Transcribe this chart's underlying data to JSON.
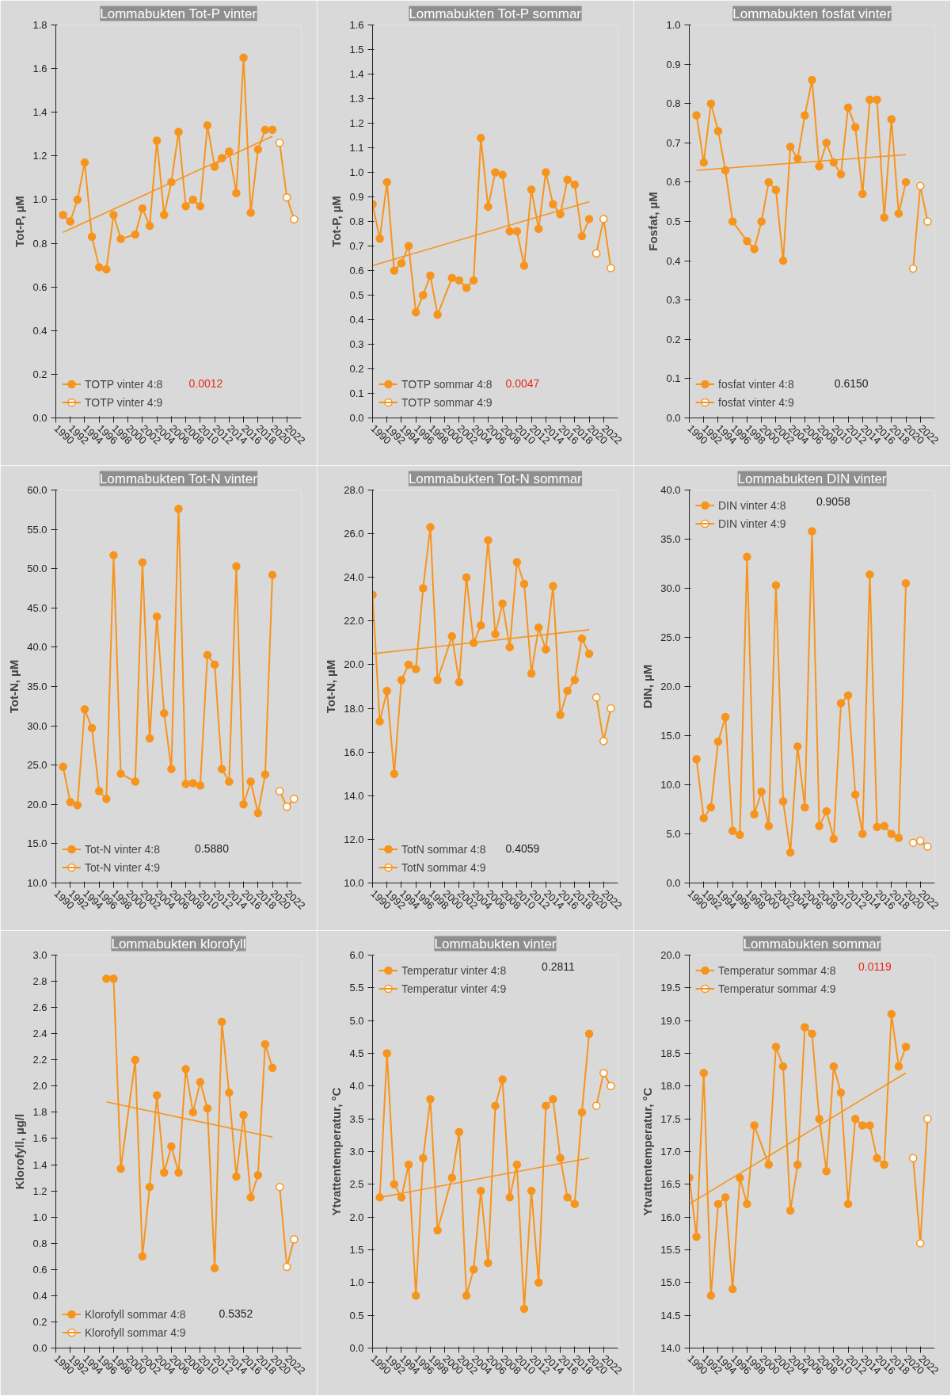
{
  "chart_data": [
    {
      "type": "line",
      "title": "Lommabukten Tot-P vinter",
      "ylabel": "Tot-P, µM",
      "xlim": [
        1990,
        2024
      ],
      "xticks": [
        1990,
        1992,
        1994,
        1996,
        1998,
        2000,
        2002,
        2004,
        2006,
        2008,
        2010,
        2012,
        2014,
        2016,
        2018,
        2020,
        2022
      ],
      "ylim": [
        0,
        1.8
      ],
      "yticks": [
        {
          "value": 0,
          "label": "0.0"
        },
        0.2,
        0.4,
        0.6,
        0.8,
        {
          "value": 1,
          "label": "1.0"
        },
        1.2,
        1.4,
        1.6,
        1.8
      ],
      "grid": false,
      "marker": "circle",
      "legend": "bottom left",
      "annotations": [
        "0.0012"
      ],
      "series": [
        {
          "name": "TOTP vinter 4:8",
          "color": "#f7941d",
          "x": [
            1991,
            1992,
            1993,
            1994,
            1995,
            1996,
            1997,
            1998,
            1999,
            2001,
            2002,
            2003,
            2004,
            2005,
            2006,
            2007,
            2008,
            2009,
            2010,
            2011,
            2012,
            2013,
            2014,
            2015,
            2016,
            2017,
            2018,
            2019,
            2020
          ],
          "values": [
            0.93,
            0.9,
            1.0,
            1.17,
            0.83,
            0.69,
            0.68,
            0.93,
            0.82,
            0.84,
            0.96,
            0.88,
            1.27,
            0.93,
            1.08,
            1.31,
            0.97,
            1.0,
            0.97,
            1.34,
            1.15,
            1.19,
            1.22,
            1.03,
            1.65,
            0.94,
            1.23,
            1.32,
            1.32
          ]
        },
        {
          "name": "TOTP vinter 4:9",
          "color": "#f7941d",
          "colors": [
            "#ffffff",
            "#ffffff",
            "#ffffff"
          ],
          "x": [
            2021,
            2022,
            2023
          ],
          "values": [
            1.26,
            1.01,
            0.91
          ]
        },
        {
          "type": "line",
          "marker": "none",
          "color": "#f7941d",
          "x": [
            1991,
            2020
          ],
          "values": [
            0.85,
            1.29
          ]
        }
      ]
    },
    {
      "type": "line",
      "title": "Lommabukten Tot-P sommar",
      "ylabel": "Tot-P, µM",
      "xlim": [
        1990,
        2024
      ],
      "xticks": [
        1990,
        1992,
        1994,
        1996,
        1998,
        2000,
        2002,
        2004,
        2006,
        2008,
        2010,
        2012,
        2014,
        2016,
        2018,
        2020,
        2022
      ],
      "ylim": [
        0,
        1.6
      ],
      "yticks": [
        {
          "value": 0,
          "label": "0.0"
        },
        0.1,
        0.2,
        0.3,
        0.4,
        0.5,
        0.6,
        0.7,
        0.8,
        0.9,
        {
          "value": 1,
          "label": "1.0"
        },
        1.1,
        1.2,
        1.3,
        1.4,
        1.5,
        1.6
      ],
      "grid": false,
      "marker": "circle",
      "legend": "bottom left",
      "annotations": [
        "0.0047"
      ],
      "series": [
        {
          "name": "TOTP sommar 4:8",
          "color": "#f7941d",
          "x": [
            1990,
            1991,
            1992,
            1993,
            1994,
            1995,
            1996,
            1997,
            1998,
            1999,
            2001,
            2002,
            2003,
            2004,
            2005,
            2006,
            2007,
            2008,
            2009,
            2010,
            2011,
            2012,
            2013,
            2014,
            2015,
            2016,
            2017,
            2018,
            2019,
            2020
          ],
          "values": [
            0.87,
            0.73,
            0.96,
            0.6,
            0.63,
            0.7,
            0.43,
            0.5,
            0.58,
            0.42,
            0.57,
            0.56,
            0.53,
            0.56,
            1.14,
            0.86,
            1.0,
            0.99,
            0.76,
            0.76,
            0.62,
            0.93,
            0.77,
            1.0,
            0.87,
            0.83,
            0.97,
            0.95,
            0.74,
            0.81
          ]
        },
        {
          "name": "TOTP sommar 4:9",
          "color": "#f7941d",
          "colors": [
            "#ffffff",
            "#ffffff",
            "#ffffff"
          ],
          "x": [
            2021,
            2022,
            2023
          ],
          "values": [
            0.67,
            0.81,
            0.61
          ]
        },
        {
          "type": "line",
          "marker": "none",
          "color": "#f7941d",
          "x": [
            1990,
            2020
          ],
          "values": [
            0.62,
            0.88
          ]
        }
      ]
    },
    {
      "type": "line",
      "title": "Lommabukten fosfat vinter",
      "ylabel": "Fosfat, µM",
      "xlim": [
        1990,
        2024
      ],
      "xticks": [
        1990,
        1992,
        1994,
        1996,
        1998,
        2000,
        2002,
        2004,
        2006,
        2008,
        2010,
        2012,
        2014,
        2016,
        2018,
        2020,
        2022
      ],
      "ylim": [
        0,
        1.0
      ],
      "yticks": [
        {
          "value": 0,
          "label": "0.0"
        },
        0.1,
        0.2,
        0.3,
        0.4,
        0.5,
        0.6,
        0.7,
        0.8,
        0.9,
        {
          "value": 1,
          "label": "1.0"
        }
      ],
      "grid": false,
      "marker": "circle",
      "legend": "bottom left",
      "annotations": [
        "0.6150"
      ],
      "series": [
        {
          "name": "fosfat vinter 4:8",
          "color": "#f7941d",
          "x": [
            1991,
            1992,
            1993,
            1994,
            1995,
            1996,
            1998,
            1999,
            2000,
            2001,
            2002,
            2003,
            2004,
            2005,
            2006,
            2007,
            2008,
            2009,
            2010,
            2011,
            2012,
            2013,
            2014,
            2015,
            2016,
            2017,
            2018,
            2019,
            2020
          ],
          "values": [
            0.77,
            0.65,
            0.8,
            0.73,
            0.63,
            0.5,
            0.45,
            0.43,
            0.5,
            0.6,
            0.58,
            0.4,
            0.69,
            0.66,
            0.77,
            0.86,
            0.64,
            0.7,
            0.65,
            0.62,
            0.79,
            0.74,
            0.57,
            0.81,
            0.81,
            0.51,
            0.76,
            0.52,
            0.6
          ]
        },
        {
          "name": "fosfat vinter 4:9",
          "color": "#f7941d",
          "colors": [
            "#ffffff",
            "#ffffff",
            "#ffffff"
          ],
          "x": [
            2021,
            2022,
            2023
          ],
          "values": [
            0.38,
            0.59,
            0.5
          ]
        },
        {
          "type": "line",
          "marker": "none",
          "color": "#f7941d",
          "x": [
            1991,
            2020
          ],
          "values": [
            0.63,
            0.67
          ]
        }
      ]
    },
    {
      "type": "line",
      "title": "Lommabukten Tot-N vinter",
      "ylabel": "Tot-N, µM",
      "xlim": [
        1990,
        2024
      ],
      "xticks": [
        1990,
        1992,
        1994,
        1996,
        1998,
        2000,
        2002,
        2004,
        2006,
        2008,
        2010,
        2012,
        2014,
        2016,
        2018,
        2020,
        2022
      ],
      "ylim": [
        10,
        60
      ],
      "yticks": [
        {
          "value": 10,
          "label": "10.0"
        },
        {
          "value": 15,
          "label": "15.0"
        },
        {
          "value": 20,
          "label": "20.0"
        },
        {
          "value": 25,
          "label": "25.0"
        },
        {
          "value": 30,
          "label": "30.0"
        },
        {
          "value": 35,
          "label": "35.0"
        },
        {
          "value": 40,
          "label": "40.0"
        },
        {
          "value": 45,
          "label": "45.0"
        },
        {
          "value": 50,
          "label": "50.0"
        },
        {
          "value": 55,
          "label": "55.0"
        },
        {
          "value": 60,
          "label": "60.0"
        }
      ],
      "grid": false,
      "marker": "circle",
      "legend": "bottom left",
      "annotations": [
        "0.5880"
      ],
      "series": [
        {
          "name": "Tot-N vinter 4:8",
          "color": "#f7941d",
          "x": [
            1991,
            1992,
            1993,
            1994,
            1995,
            1996,
            1997,
            1998,
            1999,
            2001,
            2002,
            2003,
            2004,
            2005,
            2006,
            2007,
            2008,
            2009,
            2010,
            2011,
            2012,
            2013,
            2014,
            2015,
            2016,
            2017,
            2018,
            2019,
            2020
          ],
          "values": [
            24.8,
            20.3,
            19.9,
            32.1,
            29.7,
            21.7,
            20.7,
            51.7,
            23.9,
            22.9,
            50.8,
            28.4,
            43.9,
            31.6,
            24.5,
            57.6,
            22.6,
            22.7,
            22.4,
            39.0,
            37.8,
            24.5,
            22.9,
            50.3,
            20.0,
            22.9,
            18.9,
            23.8,
            49.2
          ]
        },
        {
          "name": "Tot-N vinter 4:9",
          "color": "#f7941d",
          "colors": [
            "#ffffff",
            "#ffffff",
            "#ffffff"
          ],
          "x": [
            2021,
            2022,
            2023
          ],
          "values": [
            21.7,
            19.7,
            20.7
          ]
        }
      ]
    },
    {
      "type": "line",
      "title": "Lommabukten Tot-N sommar",
      "ylabel": "Tot-N, µM",
      "xlim": [
        1990,
        2024
      ],
      "xticks": [
        1990,
        1992,
        1994,
        1996,
        1998,
        2000,
        2002,
        2004,
        2006,
        2008,
        2010,
        2012,
        2014,
        2016,
        2018,
        2020,
        2022
      ],
      "ylim": [
        10,
        28
      ],
      "yticks": [
        {
          "value": 10,
          "label": "10.0"
        },
        {
          "value": 12,
          "label": "12.0"
        },
        {
          "value": 14,
          "label": "14.0"
        },
        {
          "value": 16,
          "label": "16.0"
        },
        {
          "value": 18,
          "label": "18.0"
        },
        {
          "value": 20,
          "label": "20.0"
        },
        {
          "value": 22,
          "label": "22.0"
        },
        {
          "value": 24,
          "label": "24.0"
        },
        {
          "value": 26,
          "label": "26.0"
        },
        {
          "value": 28,
          "label": "28.0"
        }
      ],
      "grid": false,
      "marker": "circle",
      "legend": "bottom left",
      "annotations": [
        "0.4059"
      ],
      "series": [
        {
          "name": "TotN sommar 4:8",
          "color": "#f7941d",
          "x": [
            1990,
            1991,
            1992,
            1993,
            1994,
            1995,
            1996,
            1997,
            1998,
            1999,
            2001,
            2002,
            2003,
            2004,
            2005,
            2006,
            2007,
            2008,
            2009,
            2010,
            2011,
            2012,
            2013,
            2014,
            2015,
            2016,
            2017,
            2018,
            2019,
            2020
          ],
          "values": [
            23.2,
            17.4,
            18.8,
            15.0,
            19.3,
            20.0,
            19.8,
            23.5,
            26.3,
            19.3,
            21.3,
            19.2,
            24.0,
            21.0,
            21.8,
            25.7,
            21.4,
            22.8,
            20.8,
            24.7,
            23.7,
            19.6,
            21.7,
            20.7,
            23.6,
            17.7,
            18.8,
            19.3,
            21.2,
            20.5
          ]
        },
        {
          "name": "TotN sommar 4:9",
          "color": "#f7941d",
          "colors": [
            "#ffffff",
            "#ffffff",
            "#ffffff"
          ],
          "x": [
            2021,
            2022,
            2023
          ],
          "values": [
            18.5,
            16.5,
            18.0
          ]
        },
        {
          "type": "line",
          "marker": "none",
          "color": "#f7941d",
          "x": [
            1990,
            2020
          ],
          "values": [
            20.5,
            21.6
          ]
        }
      ]
    },
    {
      "type": "line",
      "title": "Lommabukten DIN vinter",
      "ylabel": "DIN, µM",
      "xlim": [
        1990,
        2024
      ],
      "xticks": [
        1990,
        1992,
        1994,
        1996,
        1998,
        2000,
        2002,
        2004,
        2006,
        2008,
        2010,
        2012,
        2014,
        2016,
        2018,
        2020,
        2022
      ],
      "ylim": [
        0,
        40
      ],
      "yticks": [
        {
          "value": 0,
          "label": "0.0"
        },
        {
          "value": 5,
          "label": "5.0"
        },
        {
          "value": 10,
          "label": "10.0"
        },
        {
          "value": 15,
          "label": "15.0"
        },
        {
          "value": 20,
          "label": "20.0"
        },
        {
          "value": 25,
          "label": "25.0"
        },
        {
          "value": 30,
          "label": "30.0"
        },
        {
          "value": 35,
          "label": "35.0"
        },
        {
          "value": 40,
          "label": "40.0"
        }
      ],
      "grid": false,
      "marker": "circle",
      "legend": "top left",
      "annotations": [
        "0.9058"
      ],
      "series": [
        {
          "name": "DIN vinter 4:8",
          "color": "#f7941d",
          "x": [
            1991,
            1992,
            1993,
            1994,
            1995,
            1996,
            1997,
            1998,
            1999,
            2000,
            2001,
            2002,
            2003,
            2004,
            2005,
            2006,
            2007,
            2008,
            2009,
            2010,
            2011,
            2012,
            2013,
            2014,
            2015,
            2016,
            2017,
            2018,
            2019,
            2020
          ],
          "values": [
            12.6,
            6.6,
            7.7,
            14.4,
            16.9,
            5.3,
            4.9,
            33.2,
            7.0,
            9.3,
            5.8,
            30.3,
            8.3,
            3.1,
            13.9,
            7.7,
            35.8,
            5.8,
            7.3,
            4.5,
            18.3,
            19.1,
            9.0,
            5.0,
            31.4,
            5.7,
            5.8,
            5.0,
            4.6,
            30.5
          ]
        },
        {
          "name": "DIN vinter 4:9",
          "color": "#f7941d",
          "colors": [
            "#ffffff",
            "#ffffff",
            "#ffffff"
          ],
          "x": [
            2021,
            2022,
            2023
          ],
          "values": [
            4.1,
            4.3,
            3.7
          ]
        }
      ]
    },
    {
      "type": "line",
      "title": "Lommabukten klorofyll",
      "ylabel": "Klorofyll, µg/l",
      "xlim": [
        1990,
        2024
      ],
      "xticks": [
        1990,
        1992,
        1994,
        1996,
        1998,
        2000,
        2002,
        2004,
        2006,
        2008,
        2010,
        2012,
        2014,
        2016,
        2018,
        2020,
        2022
      ],
      "ylim": [
        0,
        3.0
      ],
      "yticks": [
        {
          "value": 0,
          "label": "0.0"
        },
        0.2,
        0.4,
        0.6,
        0.8,
        {
          "value": 1,
          "label": "1.0"
        },
        1.2,
        1.4,
        1.6,
        1.8,
        {
          "value": 2,
          "label": "2.0"
        },
        2.2,
        2.4,
        2.6,
        2.8,
        {
          "value": 3,
          "label": "3.0"
        }
      ],
      "grid": false,
      "marker": "circle",
      "legend": "bottom left",
      "annotations": [
        "0.5352"
      ],
      "series": [
        {
          "name": "Klorofyll sommar 4:8",
          "color": "#f7941d",
          "x": [
            1997,
            1998,
            1999,
            2001,
            2002,
            2003,
            2004,
            2005,
            2006,
            2007,
            2008,
            2009,
            2010,
            2011,
            2012,
            2013,
            2014,
            2015,
            2016,
            2017,
            2018,
            2019,
            2020
          ],
          "values": [
            2.82,
            2.82,
            1.37,
            2.2,
            0.7,
            1.23,
            1.93,
            1.34,
            1.54,
            1.34,
            2.13,
            1.8,
            2.03,
            1.83,
            0.61,
            2.49,
            1.95,
            1.31,
            1.78,
            1.15,
            1.32,
            2.32,
            2.14
          ]
        },
        {
          "name": "Klorofyll sommar 4:9",
          "color": "#f7941d",
          "colors": [
            "#ffffff",
            "#ffffff",
            "#ffffff"
          ],
          "x": [
            2021,
            2022,
            2023
          ],
          "values": [
            1.23,
            0.62,
            0.83
          ]
        },
        {
          "type": "line",
          "marker": "none",
          "color": "#f7941d",
          "x": [
            1997,
            2020
          ],
          "values": [
            1.88,
            1.61
          ]
        }
      ]
    },
    {
      "type": "line",
      "title": "Lommabukten vinter",
      "ylabel": "Ytvattentemperatur, °C",
      "xlim": [
        1990,
        2024
      ],
      "xticks": [
        1990,
        1992,
        1994,
        1996,
        1998,
        2000,
        2002,
        2004,
        2006,
        2008,
        2010,
        2012,
        2014,
        2016,
        2018,
        2020,
        2022
      ],
      "ylim": [
        0,
        6.0
      ],
      "yticks": [
        {
          "value": 0,
          "label": "0.0"
        },
        0.5,
        {
          "value": 1,
          "label": "1.0"
        },
        1.5,
        {
          "value": 2,
          "label": "2.0"
        },
        2.5,
        {
          "value": 3,
          "label": "3.0"
        },
        3.5,
        {
          "value": 4,
          "label": "4.0"
        },
        4.5,
        {
          "value": 5,
          "label": "5.0"
        },
        5.5,
        {
          "value": 6,
          "label": "6.0"
        }
      ],
      "grid": false,
      "marker": "circle",
      "legend": "top left",
      "annotations": [
        "0.2811"
      ],
      "series": [
        {
          "name": "Temperatur vinter 4:8",
          "color": "#f7941d",
          "x": [
            1991,
            1992,
            1993,
            1994,
            1995,
            1996,
            1997,
            1998,
            1999,
            2001,
            2002,
            2003,
            2004,
            2005,
            2006,
            2007,
            2008,
            2009,
            2010,
            2011,
            2012,
            2013,
            2014,
            2015,
            2016,
            2017,
            2018,
            2019,
            2020
          ],
          "values": [
            2.3,
            4.5,
            2.5,
            2.3,
            2.8,
            0.8,
            2.9,
            3.8,
            1.8,
            2.6,
            3.3,
            0.8,
            1.2,
            2.4,
            1.3,
            3.7,
            4.1,
            2.3,
            2.8,
            0.6,
            2.4,
            1.0,
            3.7,
            3.8,
            2.9,
            2.3,
            2.2,
            3.6,
            4.8
          ]
        },
        {
          "name": "Temperatur vinter 4:9",
          "color": "#f7941d",
          "colors": [
            "#ffffff",
            "#ffffff",
            "#ffffff"
          ],
          "x": [
            2021,
            2022,
            2023
          ],
          "values": [
            3.7,
            4.2,
            4.0
          ]
        },
        {
          "type": "line",
          "marker": "none",
          "color": "#f7941d",
          "x": [
            1991,
            2020
          ],
          "values": [
            2.3,
            2.9
          ]
        }
      ]
    },
    {
      "type": "line",
      "title": "Lommabukten sommar",
      "ylabel": "Ytvattentemperatur, °C",
      "xlim": [
        1990,
        2024
      ],
      "xticks": [
        1990,
        1992,
        1994,
        1996,
        1998,
        2000,
        2002,
        2004,
        2006,
        2008,
        2010,
        2012,
        2014,
        2016,
        2018,
        2020,
        2022
      ],
      "ylim": [
        14,
        20
      ],
      "yticks": [
        {
          "value": 14,
          "label": "14.0"
        },
        14.5,
        {
          "value": 15,
          "label": "15.0"
        },
        15.5,
        {
          "value": 16,
          "label": "16.0"
        },
        16.5,
        {
          "value": 17,
          "label": "17.0"
        },
        17.5,
        {
          "value": 18,
          "label": "18.0"
        },
        18.5,
        {
          "value": 19,
          "label": "19.0"
        },
        19.5,
        {
          "value": 20,
          "label": "20.0"
        }
      ],
      "grid": false,
      "marker": "circle",
      "legend": "top left",
      "annotations": [
        "0.0119"
      ],
      "series": [
        {
          "name": "Temperatur sommar 4:8",
          "color": "#f7941d",
          "x": [
            1990,
            1991,
            1992,
            1993,
            1994,
            1995,
            1996,
            1997,
            1998,
            1999,
            2001,
            2002,
            2003,
            2004,
            2005,
            2006,
            2007,
            2008,
            2009,
            2010,
            2011,
            2012,
            2013,
            2014,
            2015,
            2016,
            2017,
            2018,
            2019,
            2020
          ],
          "values": [
            16.6,
            15.7,
            18.2,
            14.8,
            16.2,
            16.3,
            14.9,
            16.6,
            16.2,
            17.4,
            16.8,
            18.6,
            18.3,
            16.1,
            16.8,
            18.9,
            18.8,
            17.5,
            16.7,
            18.3,
            17.9,
            16.2,
            17.5,
            17.4,
            17.4,
            16.9,
            16.8,
            19.1,
            18.3,
            18.6
          ]
        },
        {
          "name": "Temperatur sommar 4:9",
          "color": "#f7941d",
          "colors": [
            "#ffffff",
            "#ffffff",
            "#ffffff"
          ],
          "x": [
            2021,
            2022,
            2023
          ],
          "values": [
            16.9,
            15.6,
            17.5
          ]
        },
        {
          "type": "line",
          "marker": "none",
          "color": "#f7941d",
          "x": [
            1990,
            2020
          ],
          "values": [
            16.2,
            18.2
          ]
        }
      ]
    }
  ]
}
